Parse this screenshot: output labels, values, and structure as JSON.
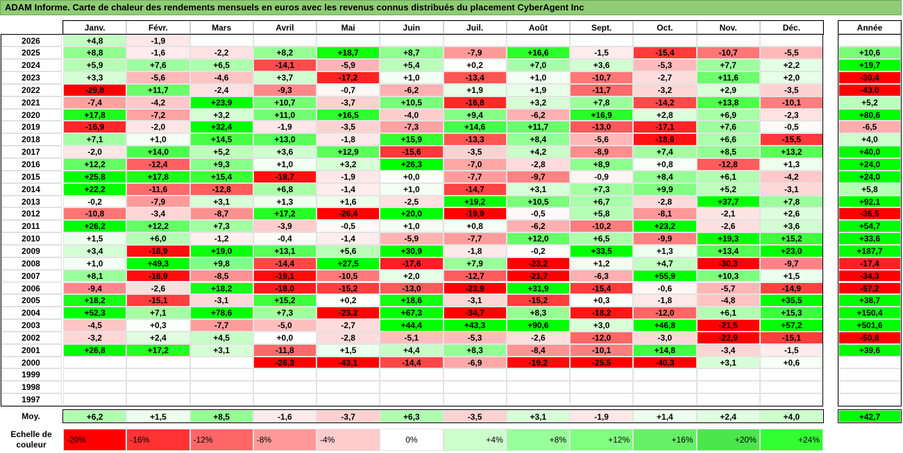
{
  "title": "ADAM Informe. Carte de chaleur des rendements mensuels en euros avec les revenus connus distribués du placement CyberAgent Inc",
  "chart_data": {
    "type": "heatmap",
    "columns": [
      "Janv.",
      "Févr.",
      "Mars",
      "Avril",
      "Mai",
      "Juin",
      "Juil.",
      "Août",
      "Sept.",
      "Oct.",
      "Nov.",
      "Déc."
    ],
    "year_header": "Année",
    "rows": [
      {
        "year": "2026",
        "values": [
          "+4,8",
          "-1,9",
          "",
          "",
          "",
          "",
          "",
          "",
          "",
          "",
          "",
          ""
        ],
        "annual": ""
      },
      {
        "year": "2025",
        "values": [
          "+8,8",
          "-1,6",
          "-2,2",
          "+8,2",
          "+18,7",
          "+8,7",
          "-7,9",
          "+16,6",
          "-1,5",
          "-15,4",
          "-10,7",
          "-5,5"
        ],
        "annual": "+10,6"
      },
      {
        "year": "2024",
        "values": [
          "+5,9",
          "+7,6",
          "+6,5",
          "-14,1",
          "-5,9",
          "+5,4",
          "+0,2",
          "+7,0",
          "+3,6",
          "-5,3",
          "+7,7",
          "+2,2"
        ],
        "annual": "+19,7"
      },
      {
        "year": "2023",
        "values": [
          "+3,3",
          "-5,6",
          "-4,6",
          "+3,7",
          "-17,2",
          "+1,0",
          "-13,4",
          "+1,0",
          "-10,7",
          "-2,7",
          "+11,6",
          "+2,0"
        ],
        "annual": "-30,4"
      },
      {
        "year": "2022",
        "values": [
          "-29,8",
          "+11,7",
          "-2,4",
          "-9,3",
          "-0,7",
          "-6,2",
          "+1,9",
          "+1,9",
          "-11,7",
          "-3,2",
          "+2,9",
          "-3,5"
        ],
        "annual": "-43,0"
      },
      {
        "year": "2021",
        "values": [
          "-7,4",
          "-4,2",
          "+23,9",
          "+10,7",
          "-3,7",
          "+10,5",
          "-16,8",
          "+3,2",
          "+7,8",
          "-14,2",
          "+13,8",
          "-10,1"
        ],
        "annual": "+5,2"
      },
      {
        "year": "2020",
        "values": [
          "+17,8",
          "-7,2",
          "+3,2",
          "+11,0",
          "+16,5",
          "-4,0",
          "+9,4",
          "-6,2",
          "+16,9",
          "+2,8",
          "+6,9",
          "-2,3"
        ],
        "annual": "+80,6"
      },
      {
        "year": "2019",
        "values": [
          "-16,9",
          "-2,0",
          "+32,4",
          "-1,9",
          "-3,5",
          "-7,3",
          "+14,6",
          "+11,7",
          "-13,0",
          "-17,1",
          "+7,6",
          "-0,5"
        ],
        "annual": "-6,5"
      },
      {
        "year": "2018",
        "values": [
          "+7,1",
          "+1,0",
          "+14,5",
          "+13,0",
          "-1,8",
          "+15,9",
          "-13,3",
          "+8,4",
          "-5,6",
          "-18,6",
          "+6,6",
          "-15,5"
        ],
        "annual": "+4,0"
      },
      {
        "year": "2017",
        "values": [
          "-2,0",
          "+14,0",
          "+5,2",
          "+3,6",
          "+12,9",
          "-15,6",
          "-3,5",
          "+4,2",
          "-8,9",
          "+7,4",
          "+8,5",
          "+13,2"
        ],
        "annual": "+40,0"
      },
      {
        "year": "2016",
        "values": [
          "+12,2",
          "-12,4",
          "+9,3",
          "+1,0",
          "+3,2",
          "+26,3",
          "-7,0",
          "-2,8",
          "+8,9",
          "+0,8",
          "-12,8",
          "+1,3"
        ],
        "annual": "+24,0"
      },
      {
        "year": "2015",
        "values": [
          "+25,8",
          "+17,8",
          "+15,4",
          "-18,7",
          "-1,9",
          "+0,0",
          "-7,7",
          "-9,7",
          "-0,9",
          "+8,4",
          "+6,1",
          "-4,2"
        ],
        "annual": "+24,0"
      },
      {
        "year": "2014",
        "values": [
          "+22,2",
          "-11,6",
          "-12,8",
          "+6,8",
          "-1,4",
          "+1,0",
          "-14,7",
          "+3,1",
          "+7,3",
          "+9,9",
          "+5,2",
          "-3,1"
        ],
        "annual": "+5,8"
      },
      {
        "year": "2013",
        "values": [
          "-0,2",
          "-7,9",
          "+3,1",
          "+1,3",
          "+1,6",
          "-2,5",
          "+19,2",
          "+10,5",
          "+6,7",
          "-2,8",
          "+37,7",
          "+7,8"
        ],
        "annual": "+92,1"
      },
      {
        "year": "2012",
        "values": [
          "-10,8",
          "-3,4",
          "-8,7",
          "+17,2",
          "-26,4",
          "+20,0",
          "-19,9",
          "-0,5",
          "+5,8",
          "-8,1",
          "-2,1",
          "+2,6"
        ],
        "annual": "-36,5"
      },
      {
        "year": "2011",
        "values": [
          "+26,2",
          "+12,2",
          "+7,3",
          "-3,9",
          "-0,5",
          "+1,0",
          "+0,8",
          "-6,2",
          "-10,2",
          "+23,2",
          "-2,6",
          "+3,6"
        ],
        "annual": "+54,7"
      },
      {
        "year": "2010",
        "values": [
          "+1,5",
          "+6,0",
          "-1,2",
          "-0,4",
          "-1,4",
          "-5,9",
          "-7,7",
          "+12,0",
          "+6,5",
          "-9,9",
          "+19,3",
          "+15,2"
        ],
        "annual": "+33,6"
      },
      {
        "year": "2009",
        "values": [
          "+3,4",
          "-18,9",
          "+19,0",
          "+13,1",
          "+5,6",
          "+30,9",
          "-1,8",
          "-0,2",
          "+33,5",
          "+1,3",
          "+13,4",
          "+23,0"
        ],
        "annual": "+187,7"
      },
      {
        "year": "2008",
        "values": [
          "+1,0",
          "+49,3",
          "+9,8",
          "-14,4",
          "+27,5",
          "-17,6",
          "+7,9",
          "-23,2",
          "+1,2",
          "+4,7",
          "-30,3",
          "-9,7"
        ],
        "annual": "-17,4"
      },
      {
        "year": "2007",
        "values": [
          "+8,1",
          "-18,9",
          "-8,5",
          "-19,1",
          "-10,5",
          "+2,0",
          "-12,7",
          "-21,7",
          "-6,3",
          "+55,9",
          "+10,3",
          "+1,5"
        ],
        "annual": "-34,3"
      },
      {
        "year": "2006",
        "values": [
          "-9,4",
          "-2,6",
          "+18,2",
          "-18,0",
          "-15,2",
          "-13,0",
          "-23,9",
          "+31,9",
          "-15,4",
          "-0,6",
          "-5,7",
          "-14,9"
        ],
        "annual": "-57,2"
      },
      {
        "year": "2005",
        "values": [
          "+18,2",
          "-15,1",
          "-3,1",
          "+15,2",
          "+0,2",
          "+18,6",
          "-3,1",
          "-15,2",
          "+0,3",
          "-1,8",
          "-4,8",
          "+35,5"
        ],
        "annual": "+38,7"
      },
      {
        "year": "2004",
        "values": [
          "+52,3",
          "+7,1",
          "+78,6",
          "+7,3",
          "-23,2",
          "+67,3",
          "-34,7",
          "+8,3",
          "-18,2",
          "-12,0",
          "+6,1",
          "+15,3"
        ],
        "annual": "+150,4"
      },
      {
        "year": "2003",
        "values": [
          "-4,5",
          "+0,3",
          "-7,7",
          "-5,0",
          "-2,7",
          "+44,4",
          "+43,3",
          "+90,6",
          "+3,0",
          "+46,8",
          "-21,5",
          "+57,2"
        ],
        "annual": "+501,6"
      },
      {
        "year": "2002",
        "values": [
          "-3,2",
          "+2,4",
          "+4,5",
          "+0,0",
          "-2,8",
          "-5,1",
          "-5,3",
          "-2,6",
          "-12,0",
          "-3,0",
          "-22,9",
          "-15,1"
        ],
        "annual": "-50,8"
      },
      {
        "year": "2001",
        "values": [
          "+26,8",
          "+17,2",
          "+3,1",
          "-11,8",
          "+1,5",
          "+4,4",
          "+8,3",
          "-8,4",
          "-10,1",
          "+14,8",
          "-3,4",
          "-1,5"
        ],
        "annual": "+39,6"
      },
      {
        "year": "2000",
        "values": [
          "",
          "",
          "",
          "-26,3",
          "-43,1",
          "-14,4",
          "-6,9",
          "-19,2",
          "-25,5",
          "-40,3",
          "+3,1",
          "+0,6"
        ],
        "annual": ""
      },
      {
        "year": "1999",
        "values": [
          "",
          "",
          "",
          "",
          "",
          "",
          "",
          "",
          "",
          "",
          "",
          ""
        ],
        "annual": ""
      },
      {
        "year": "1998",
        "values": [
          "",
          "",
          "",
          "",
          "",
          "",
          "",
          "",
          "",
          "",
          "",
          ""
        ],
        "annual": ""
      },
      {
        "year": "1997",
        "values": [
          "",
          "",
          "",
          "",
          "",
          "",
          "",
          "",
          "",
          "",
          "",
          ""
        ],
        "annual": ""
      }
    ],
    "average_label": "Moy.",
    "averages": [
      "+6,2",
      "+1,5",
      "+8,5",
      "-1,6",
      "-3,7",
      "+6,3",
      "-3,5",
      "+3,1",
      "-1,9",
      "+1,4",
      "+2,4",
      "+4,0"
    ],
    "average_annual": "+42,7",
    "scale_label": "Echelle de couleur",
    "scale": [
      {
        "label": "-20%",
        "value": -20,
        "color": "#ff0000"
      },
      {
        "label": "-16%",
        "value": -16,
        "color": "#ff3333"
      },
      {
        "label": "-12%",
        "value": -12,
        "color": "#ff6666"
      },
      {
        "label": "-8%",
        "value": -8,
        "color": "#ff9999"
      },
      {
        "label": "-4%",
        "value": -4,
        "color": "#ffcccc"
      },
      {
        "label": "0%",
        "value": 0,
        "color": "#ffffff"
      },
      {
        "label": "+4%",
        "value": 4,
        "color": "#ccffcc"
      },
      {
        "label": "+8%",
        "value": 8,
        "color": "#99ff99"
      },
      {
        "label": "+12%",
        "value": 12,
        "color": "#80ff80"
      },
      {
        "label": "+16%",
        "value": 16,
        "color": "#66f066"
      },
      {
        "label": "+20%",
        "value": 20,
        "color": "#4ce64c"
      },
      {
        "label": "+24%",
        "value": 24,
        "color": "#33ff33"
      }
    ]
  }
}
